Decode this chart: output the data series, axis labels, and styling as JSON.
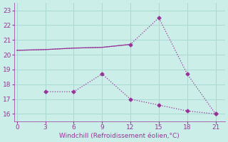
{
  "line1_x": [
    0,
    3,
    6,
    9,
    12,
    15,
    18,
    21
  ],
  "line1_y": [
    20.3,
    20.35,
    20.45,
    20.5,
    20.7,
    22.5,
    18.7,
    16.0
  ],
  "line2_x": [
    3,
    6,
    9,
    12,
    15,
    18,
    21
  ],
  "line2_y": [
    17.5,
    17.5,
    18.7,
    17.0,
    16.6,
    16.2,
    16.0
  ],
  "color": "#993399",
  "bg_color": "#cceee8",
  "grid_color": "#aad8d2",
  "xlabel": "Windchill (Refroidissement éolien,°C)",
  "xticks": [
    0,
    3,
    6,
    9,
    12,
    15,
    18,
    21
  ],
  "yticks": [
    16,
    17,
    18,
    19,
    20,
    21,
    22,
    23
  ],
  "ylim": [
    15.5,
    23.5
  ],
  "xlim": [
    -0.3,
    22.0
  ]
}
